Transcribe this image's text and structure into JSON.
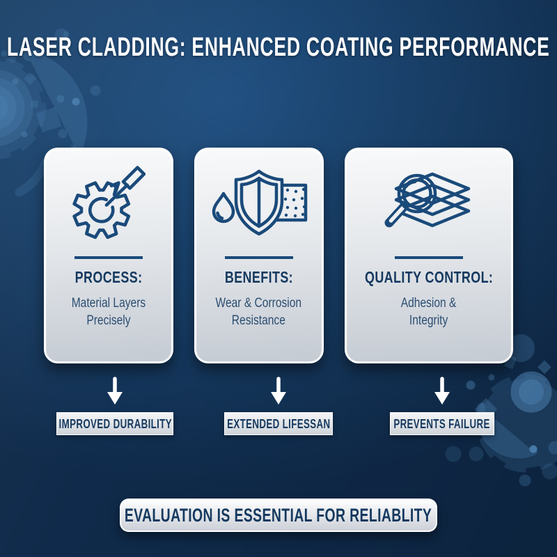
{
  "header": {
    "title": "LASER CLADDING: ENHANCED COATING PERFORMANCE"
  },
  "cards": [
    {
      "icon": "gear-laser-icon",
      "heading": "PROCESS:",
      "description": [
        "Material Layers",
        "Precisely"
      ],
      "outcome": "IMPROVED DURABILITY"
    },
    {
      "icon": "shield-droplet-coating-icon",
      "heading": "BENEFITS:",
      "description": [
        "Wear & Corrosion",
        "Resistance"
      ],
      "outcome": "EXTENDED LIFESSAN"
    },
    {
      "icon": "magnifier-layers-icon",
      "heading": "QUALITY CONTROL:",
      "description": [
        "Adhesion &",
        "Integrity"
      ],
      "outcome": "PREVENTS FAILURE"
    }
  ],
  "banner": {
    "label": "EVALUATION IS ESSENTIAL FOR RELIABLITY"
  },
  "colors": {
    "bg_center": "#215081",
    "bg_edge": "#0f2a4a",
    "accent_navy": "#1a4a7a",
    "text_navy": "#15395f",
    "card_light": "#f8f9fa",
    "card_dark": "#c5cbd3",
    "arrow_white": "#ffffff",
    "deco_blue": "#4b7fae"
  }
}
